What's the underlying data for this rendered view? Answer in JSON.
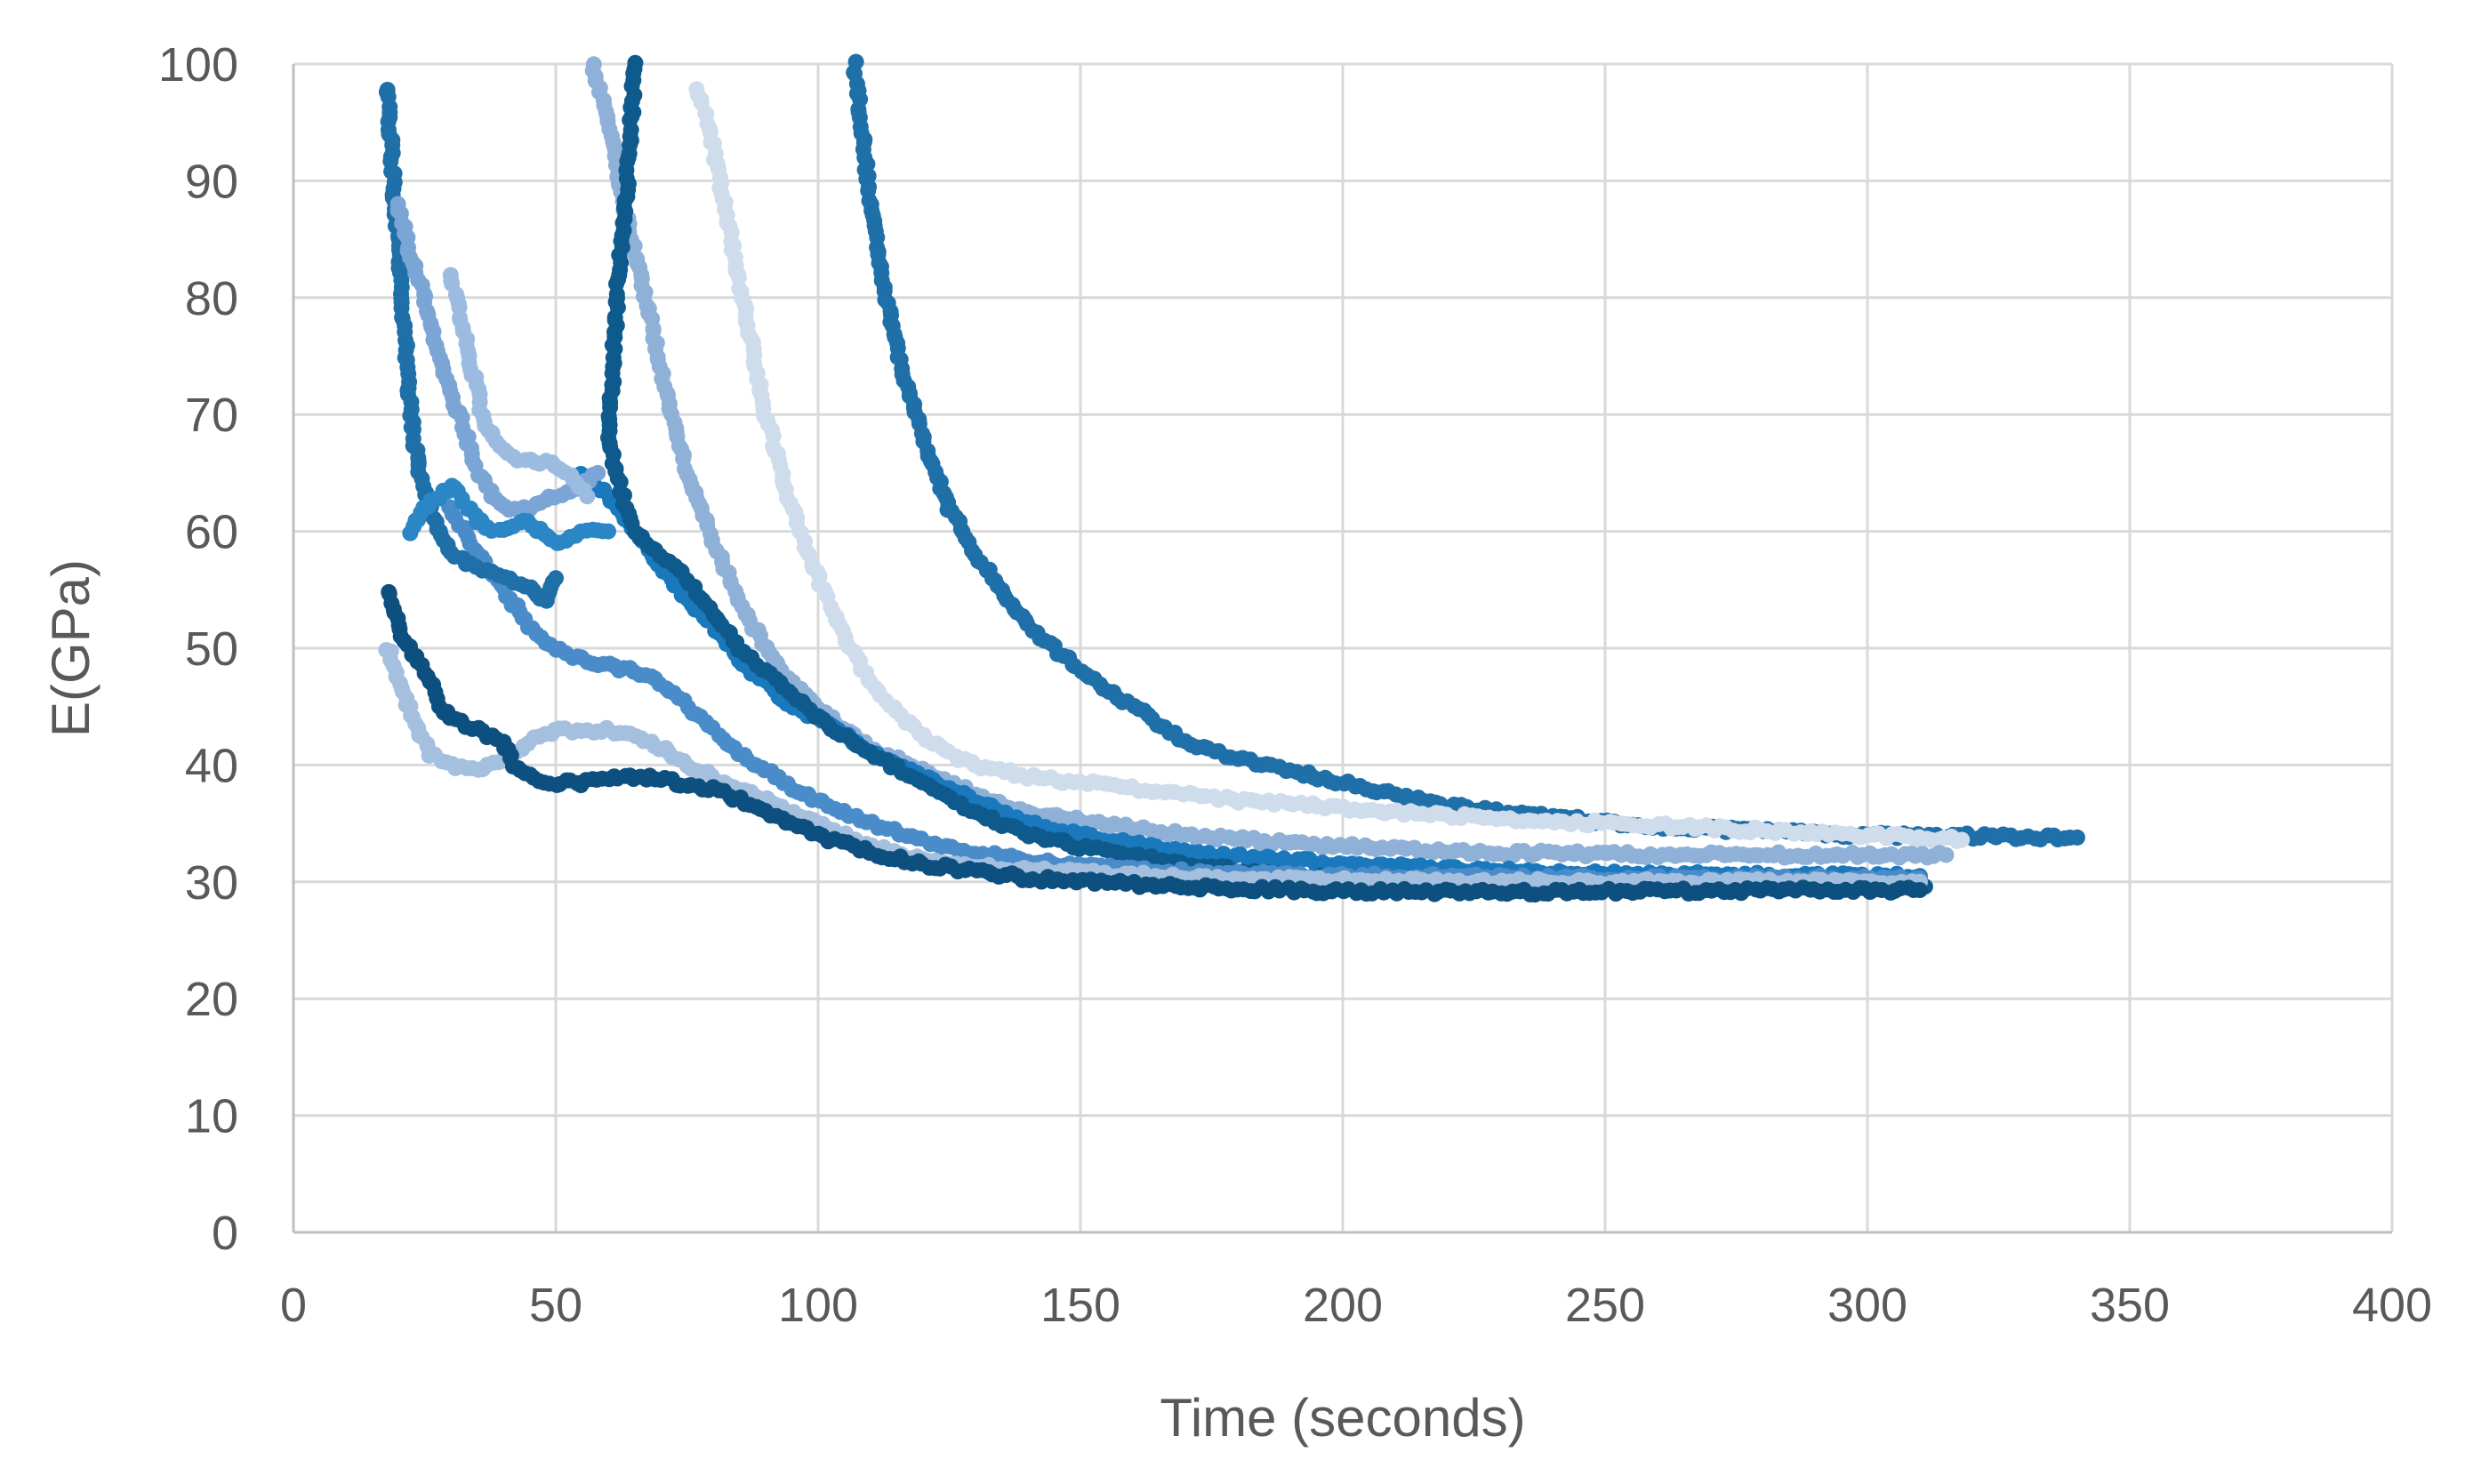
{
  "chart_data": {
    "type": "scatter",
    "title": "",
    "xlabel": "Time (seconds)",
    "ylabel": "E(GPa)",
    "xlim": [
      0,
      400
    ],
    "ylim": [
      0,
      100
    ],
    "x_ticks": [
      "0",
      "50",
      "100",
      "150",
      "200",
      "250",
      "300",
      "350",
      "400"
    ],
    "y_ticks": [
      "0",
      "10",
      "20",
      "30",
      "40",
      "50",
      "60",
      "70",
      "80",
      "90",
      "100"
    ],
    "grid": true,
    "legend": "none",
    "marker": "filled-circle",
    "series": [
      {
        "color": "#1f6fa8",
        "points": [
          [
            107,
            100
          ],
          [
            110,
            88
          ],
          [
            113,
            80
          ],
          [
            116,
            74
          ],
          [
            120,
            68
          ],
          [
            125,
            62
          ],
          [
            130,
            58
          ],
          [
            135,
            55
          ],
          [
            140,
            52
          ],
          [
            150,
            48
          ],
          [
            160,
            45
          ],
          [
            170,
            42
          ],
          [
            180,
            40.5
          ],
          [
            190,
            39.5
          ],
          [
            200,
            38.5
          ],
          [
            210,
            37.5
          ],
          [
            220,
            36.5
          ],
          [
            240,
            35.5
          ],
          [
            260,
            34.8
          ],
          [
            280,
            34.3
          ],
          [
            300,
            34
          ],
          [
            320,
            33.9
          ],
          [
            340,
            33.8
          ]
        ]
      },
      {
        "color": "#cfdcec",
        "points": [
          [
            77,
            98
          ],
          [
            80,
            93
          ],
          [
            83,
            86
          ],
          [
            86,
            79
          ],
          [
            90,
            70
          ],
          [
            95,
            62
          ],
          [
            100,
            56
          ],
          [
            105,
            51
          ],
          [
            110,
            47
          ],
          [
            115,
            44.5
          ],
          [
            120,
            42.5
          ],
          [
            125,
            41
          ],
          [
            130,
            40
          ],
          [
            140,
            39
          ],
          [
            150,
            38.5
          ],
          [
            160,
            38
          ],
          [
            180,
            37
          ],
          [
            200,
            36.3
          ],
          [
            220,
            35.7
          ],
          [
            240,
            35.2
          ],
          [
            260,
            34.8
          ],
          [
            280,
            34.4
          ],
          [
            300,
            34
          ],
          [
            318,
            33.6
          ]
        ]
      },
      {
        "color": "#8fb1d7",
        "points": [
          [
            57,
            100
          ],
          [
            60,
            95
          ],
          [
            63,
            88
          ],
          [
            66,
            82
          ],
          [
            70,
            74
          ],
          [
            75,
            65
          ],
          [
            80,
            59
          ],
          [
            85,
            54
          ],
          [
            90,
            50
          ],
          [
            95,
            47
          ],
          [
            100,
            45
          ],
          [
            105,
            43
          ],
          [
            110,
            41.5
          ],
          [
            120,
            39.5
          ],
          [
            130,
            37.5
          ],
          [
            140,
            36
          ],
          [
            150,
            35.2
          ],
          [
            170,
            34
          ],
          [
            190,
            33.3
          ],
          [
            210,
            32.8
          ],
          [
            230,
            32.5
          ],
          [
            260,
            32.3
          ],
          [
            290,
            32.3
          ],
          [
            315,
            32.3
          ]
        ]
      },
      {
        "color": "#1a78bd",
        "points": [
          [
            55,
            65
          ],
          [
            60,
            63
          ],
          [
            65,
            60
          ],
          [
            70,
            57
          ],
          [
            75,
            54
          ],
          [
            80,
            52
          ],
          [
            85,
            49
          ],
          [
            90,
            47
          ],
          [
            95,
            45
          ],
          [
            100,
            44
          ],
          [
            110,
            41
          ],
          [
            120,
            39
          ],
          [
            130,
            37
          ],
          [
            140,
            35
          ],
          [
            150,
            34
          ],
          [
            170,
            32.5
          ],
          [
            190,
            31.8
          ],
          [
            210,
            31.3
          ],
          [
            240,
            30.8
          ],
          [
            270,
            30.6
          ],
          [
            300,
            30.5
          ],
          [
            310,
            30.5
          ]
        ]
      },
      {
        "color": "#0f5a8c",
        "points": [
          [
            65,
            100
          ],
          [
            64,
            92
          ],
          [
            62,
            82
          ],
          [
            61,
            75
          ],
          [
            60,
            68
          ],
          [
            62,
            64
          ],
          [
            65,
            60
          ],
          [
            70,
            58
          ],
          [
            75,
            56
          ],
          [
            80,
            53
          ],
          [
            85,
            50
          ],
          [
            90,
            48
          ],
          [
            95,
            46
          ],
          [
            100,
            44
          ],
          [
            110,
            41
          ],
          [
            120,
            38.5
          ],
          [
            130,
            36
          ],
          [
            140,
            34
          ],
          [
            150,
            33
          ],
          [
            170,
            31.5
          ],
          [
            190,
            30.5
          ],
          [
            210,
            30
          ],
          [
            240,
            29.8
          ],
          [
            270,
            29.8
          ],
          [
            300,
            29.7
          ],
          [
            311,
            29.6
          ]
        ]
      },
      {
        "color": "#4a8cc9",
        "points": [
          [
            30,
            62
          ],
          [
            35,
            58
          ],
          [
            40,
            55
          ],
          [
            45,
            52
          ],
          [
            50,
            50
          ],
          [
            55,
            49
          ],
          [
            60,
            48.5
          ],
          [
            65,
            48
          ],
          [
            70,
            47
          ],
          [
            75,
            45
          ],
          [
            80,
            43
          ],
          [
            85,
            41
          ],
          [
            90,
            39.5
          ],
          [
            95,
            38
          ],
          [
            100,
            37
          ],
          [
            110,
            35
          ],
          [
            120,
            33.5
          ],
          [
            130,
            32.5
          ],
          [
            140,
            31.8
          ],
          [
            160,
            31
          ],
          [
            180,
            30.7
          ],
          [
            200,
            30.5
          ],
          [
            230,
            30.4
          ],
          [
            260,
            30.3
          ],
          [
            290,
            30.3
          ],
          [
            310,
            30.3
          ]
        ]
      },
      {
        "color": "#a5bfdf",
        "points": [
          [
            18,
            50
          ],
          [
            20,
            47
          ],
          [
            23,
            44
          ],
          [
            26,
            41
          ],
          [
            30,
            40
          ],
          [
            35,
            39.5
          ],
          [
            40,
            40.5
          ],
          [
            45,
            42
          ],
          [
            50,
            43
          ],
          [
            55,
            43
          ],
          [
            60,
            43
          ],
          [
            65,
            42.5
          ],
          [
            70,
            41.5
          ],
          [
            75,
            40
          ],
          [
            80,
            39
          ],
          [
            90,
            37
          ],
          [
            100,
            35
          ],
          [
            110,
            33
          ],
          [
            120,
            32
          ],
          [
            130,
            31.3
          ],
          [
            150,
            30.8
          ],
          [
            170,
            30.4
          ],
          [
            190,
            30.2
          ],
          [
            220,
            30
          ],
          [
            250,
            30
          ],
          [
            280,
            30
          ],
          [
            310,
            30
          ]
        ]
      },
      {
        "color": "#0d4f7f",
        "points": [
          [
            18,
            55
          ],
          [
            20,
            52
          ],
          [
            22,
            50
          ],
          [
            25,
            48
          ],
          [
            28,
            45
          ],
          [
            30,
            44
          ],
          [
            35,
            43
          ],
          [
            40,
            42
          ],
          [
            42,
            40
          ],
          [
            45,
            39
          ],
          [
            50,
            38.5
          ],
          [
            55,
            38.5
          ],
          [
            60,
            38.8
          ],
          [
            65,
            39
          ],
          [
            70,
            38.8
          ],
          [
            75,
            38.3
          ],
          [
            80,
            38
          ],
          [
            85,
            37
          ],
          [
            90,
            36
          ],
          [
            100,
            34
          ],
          [
            110,
            32.5
          ],
          [
            120,
            31.5
          ],
          [
            140,
            30.3
          ],
          [
            160,
            29.8
          ],
          [
            180,
            29.4
          ],
          [
            200,
            29.2
          ],
          [
            230,
            29.1
          ],
          [
            260,
            29.2
          ],
          [
            290,
            29.3
          ],
          [
            310,
            29.3
          ]
        ]
      },
      {
        "color": "#1f6fa8",
        "points": [
          [
            18,
            98
          ],
          [
            19,
            90
          ],
          [
            20,
            84
          ],
          [
            21,
            78
          ],
          [
            22,
            72
          ],
          [
            23,
            68
          ],
          [
            24,
            65
          ],
          [
            26,
            62
          ],
          [
            28,
            60
          ],
          [
            30,
            58
          ],
          [
            35,
            57
          ],
          [
            40,
            56
          ],
          [
            45,
            55
          ],
          [
            48,
            54
          ],
          [
            50,
            56
          ]
        ]
      },
      {
        "color": "#7ba5d4",
        "points": [
          [
            20,
            88
          ],
          [
            22,
            84
          ],
          [
            25,
            80
          ],
          [
            27,
            76
          ],
          [
            30,
            72
          ],
          [
            33,
            68
          ],
          [
            35,
            65
          ],
          [
            38,
            63
          ],
          [
            40,
            62
          ],
          [
            45,
            62
          ],
          [
            50,
            63
          ],
          [
            55,
            64
          ],
          [
            58,
            65
          ]
        ]
      },
      {
        "color": "#2b86c5",
        "points": [
          [
            22,
            60
          ],
          [
            25,
            62
          ],
          [
            28,
            63
          ],
          [
            30,
            64
          ],
          [
            35,
            61
          ],
          [
            38,
            60
          ],
          [
            40,
            60
          ],
          [
            44,
            61
          ],
          [
            47,
            60
          ],
          [
            50,
            59
          ],
          [
            55,
            60
          ],
          [
            60,
            60
          ]
        ]
      },
      {
        "color": "#9bbbe0",
        "points": [
          [
            30,
            82
          ],
          [
            32,
            78
          ],
          [
            34,
            74
          ],
          [
            36,
            70
          ],
          [
            38,
            68
          ],
          [
            40,
            67
          ],
          [
            44,
            66
          ],
          [
            48,
            66
          ],
          [
            52,
            65
          ],
          [
            56,
            63
          ]
        ]
      }
    ]
  }
}
